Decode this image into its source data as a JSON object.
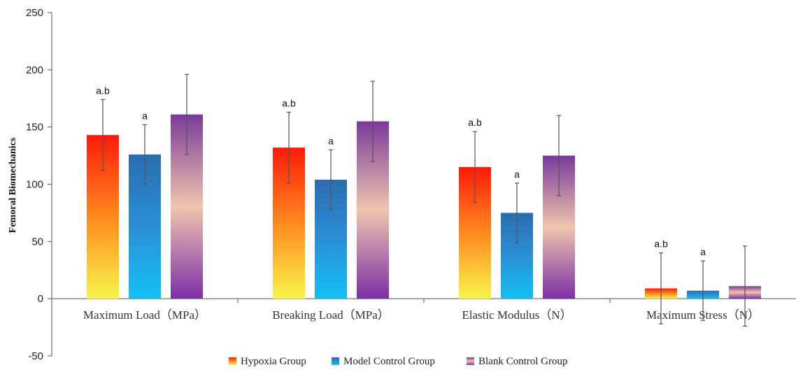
{
  "chart_data": {
    "type": "bar",
    "title": "",
    "xlabel": "",
    "ylabel": "Femoral Biomechanics",
    "ylim": [
      -50,
      250
    ],
    "yticks": [
      -50,
      0,
      50,
      100,
      150,
      200,
      250
    ],
    "categories": [
      "Maximum Load（MPa）",
      "Breaking Load（MPa）",
      "Elastic Modulus（N）",
      "Maximum Stress（N）"
    ],
    "series": [
      {
        "name": "Hypoxia Group",
        "values": [
          143,
          132,
          115,
          9
        ],
        "errors": [
          31,
          31,
          31,
          31
        ],
        "annotations": [
          "a.b",
          "a.b",
          "a.b",
          "a.b"
        ],
        "gradient": [
          "#ff1a0a",
          "#ff8a1f",
          "#f7f54a"
        ]
      },
      {
        "name": "Model Control Group",
        "values": [
          126,
          104,
          75,
          7
        ],
        "errors": [
          26,
          26,
          26,
          26
        ],
        "annotations": [
          "a",
          "a",
          "a",
          "a"
        ],
        "gradient": [
          "#2b6cb0",
          "#2b8fd6",
          "#12c0f5"
        ]
      },
      {
        "name": "Blank Control Group",
        "values": [
          161,
          155,
          125,
          11
        ],
        "errors": [
          35,
          35,
          35,
          35
        ],
        "annotations": [
          "",
          "",
          "",
          ""
        ],
        "gradient": [
          "#7a3a9a",
          "#f0c4ad",
          "#7b2fa6"
        ]
      }
    ],
    "grid": false,
    "legend_position": "bottom"
  }
}
